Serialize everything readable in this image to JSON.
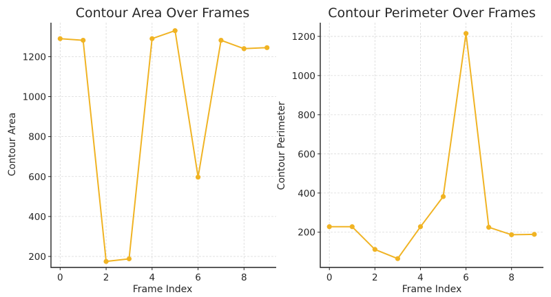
{
  "colors": {
    "series": "#f0b323",
    "axis": "#222222",
    "grid": "#d9d9d9"
  },
  "chart_data": [
    {
      "type": "line",
      "title": "Contour Area Over Frames",
      "xlabel": "Frame Index",
      "ylabel": "Contour Area",
      "xlim": [
        -0.4,
        9.4
      ],
      "ylim": [
        145,
        1370
      ],
      "xticks": [
        0,
        2,
        4,
        6,
        8
      ],
      "yticks": [
        200,
        400,
        600,
        800,
        1000,
        1200
      ],
      "grid": true,
      "series": [
        {
          "x": [
            0,
            1,
            2,
            3,
            4,
            5,
            6,
            7,
            8,
            9
          ],
          "y": [
            1290,
            1282,
            175,
            188,
            1290,
            1330,
            597,
            1282,
            1240,
            1245
          ]
        }
      ]
    },
    {
      "type": "line",
      "title": "Contour Perimeter Over Frames",
      "xlabel": "Frame Index",
      "ylabel": "Contour Perimeter",
      "xlim": [
        -0.4,
        9.4
      ],
      "ylim": [
        20,
        1270
      ],
      "xticks": [
        0,
        2,
        4,
        6,
        8
      ],
      "yticks": [
        200,
        400,
        600,
        800,
        1000,
        1200
      ],
      "grid": true,
      "series": [
        {
          "x": [
            0,
            1,
            2,
            3,
            4,
            5,
            6,
            7,
            8,
            9
          ],
          "y": [
            228,
            228,
            112,
            65,
            228,
            382,
            1215,
            225,
            187,
            189
          ]
        }
      ]
    }
  ]
}
